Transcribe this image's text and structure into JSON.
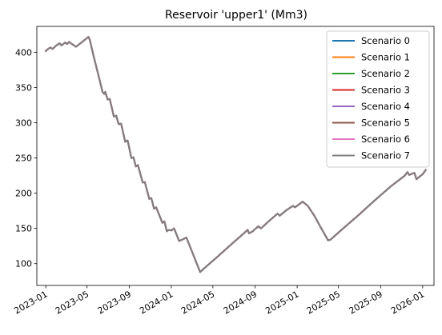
{
  "chart_data": {
    "type": "line",
    "title": "Reservoir 'upper1' (Mm3)",
    "xlabel": "",
    "ylabel": "",
    "xlim": [
      "2022-12-06",
      "2026-02-03"
    ],
    "ylim": [
      69,
      437
    ],
    "grid": false,
    "legend": "top-right",
    "x_ticks": [
      "2023-01",
      "2023-05",
      "2023-09",
      "2024-01",
      "2024-05",
      "2024-09",
      "2025-01",
      "2025-05",
      "2025-09",
      "2026-01"
    ],
    "y_ticks": [
      100,
      150,
      200,
      250,
      300,
      350,
      400
    ],
    "series_points": [
      [
        "2023-01-01",
        402
      ],
      [
        "2023-01-08",
        405
      ],
      [
        "2023-01-14",
        407
      ],
      [
        "2023-01-21",
        405
      ],
      [
        "2023-02-01",
        410
      ],
      [
        "2023-02-10",
        413
      ],
      [
        "2023-02-16",
        410
      ],
      [
        "2023-02-26",
        414
      ],
      [
        "2023-03-04",
        412
      ],
      [
        "2023-03-10",
        415
      ],
      [
        "2023-03-18",
        412
      ],
      [
        "2023-03-30",
        408
      ],
      [
        "2023-05-05",
        422
      ],
      [
        "2023-05-09",
        418
      ],
      [
        "2023-05-20",
        395
      ],
      [
        "2023-06-06",
        362
      ],
      [
        "2023-06-15",
        344
      ],
      [
        "2023-06-20",
        341
      ],
      [
        "2023-06-23",
        344
      ],
      [
        "2023-06-30",
        333
      ],
      [
        "2023-07-06",
        334
      ],
      [
        "2023-07-18",
        309
      ],
      [
        "2023-07-25",
        310
      ],
      [
        "2023-08-01",
        298
      ],
      [
        "2023-08-08",
        299
      ],
      [
        "2023-08-20",
        273
      ],
      [
        "2023-08-27",
        275
      ],
      [
        "2023-09-07",
        250
      ],
      [
        "2023-09-13",
        251
      ],
      [
        "2023-09-20",
        238
      ],
      [
        "2023-09-26",
        240
      ],
      [
        "2023-10-10",
        215
      ],
      [
        "2023-10-16",
        216
      ],
      [
        "2023-10-29",
        192
      ],
      [
        "2023-11-04",
        193
      ],
      [
        "2023-11-12",
        178
      ],
      [
        "2023-11-18",
        180
      ],
      [
        "2023-12-06",
        158
      ],
      [
        "2023-12-12",
        160
      ],
      [
        "2023-12-19",
        146
      ],
      [
        "2023-12-25",
        148
      ],
      [
        "2024-01-01",
        147
      ],
      [
        "2024-01-09",
        150
      ],
      [
        "2024-01-24",
        132
      ],
      [
        "2024-02-14",
        137
      ],
      [
        "2024-03-25",
        88
      ],
      [
        "2024-04-05",
        93
      ],
      [
        "2024-05-15",
        110
      ],
      [
        "2024-06-25",
        128
      ],
      [
        "2024-07-30",
        143
      ],
      [
        "2024-08-10",
        148
      ],
      [
        "2024-08-14",
        143
      ],
      [
        "2024-08-25",
        146
      ],
      [
        "2024-09-10",
        153
      ],
      [
        "2024-09-18",
        150
      ],
      [
        "2024-10-10",
        160
      ],
      [
        "2024-11-05",
        171
      ],
      [
        "2024-11-11",
        168
      ],
      [
        "2024-12-01",
        176
      ],
      [
        "2024-12-20",
        182
      ],
      [
        "2024-12-26",
        180
      ],
      [
        "2025-01-17",
        188
      ],
      [
        "2025-02-01",
        182
      ],
      [
        "2025-02-20",
        168
      ],
      [
        "2025-03-10",
        152
      ],
      [
        "2025-04-01",
        133
      ],
      [
        "2025-04-08",
        134
      ],
      [
        "2025-05-15",
        150
      ],
      [
        "2025-07-01",
        170
      ],
      [
        "2025-08-15",
        190
      ],
      [
        "2025-10-01",
        210
      ],
      [
        "2025-11-10",
        225
      ],
      [
        "2025-11-18",
        230
      ],
      [
        "2025-11-23",
        226
      ],
      [
        "2025-12-08",
        229
      ],
      [
        "2025-12-14",
        220
      ],
      [
        "2026-01-01",
        227
      ],
      [
        "2026-01-10",
        233
      ]
    ],
    "series": [
      {
        "name": "Scenario 0",
        "color": "#1f77b4"
      },
      {
        "name": "Scenario 1",
        "color": "#ff7f0e"
      },
      {
        "name": "Scenario 2",
        "color": "#2ca02c"
      },
      {
        "name": "Scenario 3",
        "color": "#d62728"
      },
      {
        "name": "Scenario 4",
        "color": "#9467bd"
      },
      {
        "name": "Scenario 5",
        "color": "#8c564b"
      },
      {
        "name": "Scenario 6",
        "color": "#e377c2"
      },
      {
        "name": "Scenario 7",
        "color": "#7f7f7f"
      }
    ]
  }
}
